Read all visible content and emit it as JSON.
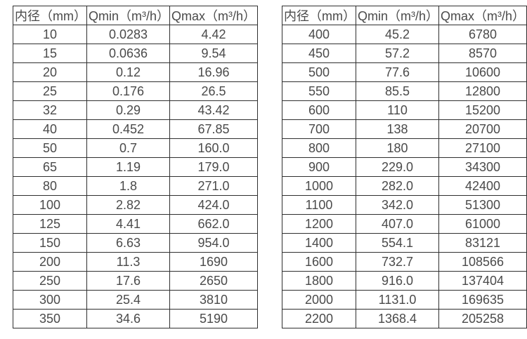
{
  "colors": {
    "background": "#ffffff",
    "border": "#2f2f2f",
    "text": "#4a4a4a"
  },
  "tables": [
    {
      "headers": [
        "内径（mm）",
        "Qmin（m³/h）",
        "Qmax（m³/h）"
      ],
      "rows": [
        [
          "10",
          "0.0283",
          "4.42"
        ],
        [
          "15",
          "0.0636",
          "9.54"
        ],
        [
          "20",
          "0.12",
          "16.96"
        ],
        [
          "25",
          "0.176",
          "26.5"
        ],
        [
          "32",
          "0.29",
          "43.42"
        ],
        [
          "40",
          "0.452",
          "67.85"
        ],
        [
          "50",
          "0.7",
          "160.0"
        ],
        [
          "65",
          "1.19",
          "179.0"
        ],
        [
          "80",
          "1.8",
          "271.0"
        ],
        [
          "100",
          "2.82",
          "424.0"
        ],
        [
          "125",
          "4.41",
          "662.0"
        ],
        [
          "150",
          "6.63",
          "954.0"
        ],
        [
          "200",
          "11.3",
          "1690"
        ],
        [
          "250",
          "17.6",
          "2650"
        ],
        [
          "300",
          "25.4",
          "3810"
        ],
        [
          "350",
          "34.6",
          "5190"
        ]
      ]
    },
    {
      "headers": [
        "内径（mm）",
        "Qmin（m³/h）",
        "Qmax（m³/h）"
      ],
      "rows": [
        [
          "400",
          "45.2",
          "6780"
        ],
        [
          "450",
          "57.2",
          "8570"
        ],
        [
          "500",
          "77.6",
          "10600"
        ],
        [
          "550",
          "85.5",
          "12800"
        ],
        [
          "600",
          "110",
          "15200"
        ],
        [
          "700",
          "138",
          "20700"
        ],
        [
          "800",
          "180",
          "27100"
        ],
        [
          "900",
          "229.0",
          "34300"
        ],
        [
          "1000",
          "282.0",
          "42400"
        ],
        [
          "1100",
          "342.0",
          "51300"
        ],
        [
          "1200",
          "407.0",
          "61000"
        ],
        [
          "1400",
          "554.1",
          "83121"
        ],
        [
          "1600",
          "732.7",
          "108566"
        ],
        [
          "1800",
          "916.0",
          "137404"
        ],
        [
          "2000",
          "1131.0",
          "169635"
        ],
        [
          "2200",
          "1368.4",
          "205258"
        ]
      ]
    }
  ]
}
